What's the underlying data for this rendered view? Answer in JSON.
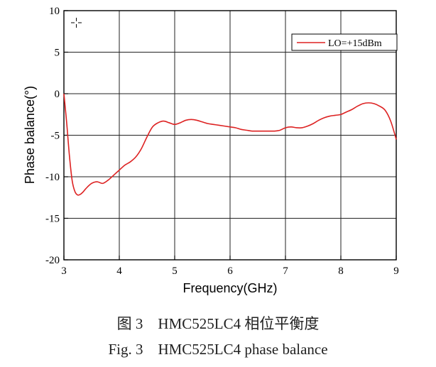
{
  "chart_data": {
    "type": "line",
    "title": "",
    "xlabel": "Frequency(GHz)",
    "ylabel": "Phase balance(°)",
    "xlim": [
      3,
      9
    ],
    "ylim": [
      -20,
      10
    ],
    "x_ticks": [
      3,
      4,
      5,
      6,
      7,
      8,
      9
    ],
    "y_ticks": [
      10,
      5,
      0,
      -5,
      -10,
      -15,
      -20
    ],
    "grid": true,
    "legend_position": "top-right",
    "series": [
      {
        "name": "LO=+15dBm",
        "color": "#dd2222",
        "x": [
          3.0,
          3.05,
          3.1,
          3.15,
          3.2,
          3.25,
          3.3,
          3.35,
          3.4,
          3.5,
          3.6,
          3.7,
          3.8,
          3.9,
          4.0,
          4.1,
          4.2,
          4.3,
          4.4,
          4.5,
          4.6,
          4.7,
          4.8,
          4.9,
          5.0,
          5.1,
          5.2,
          5.3,
          5.4,
          5.5,
          5.6,
          5.7,
          5.8,
          5.9,
          6.0,
          6.1,
          6.2,
          6.3,
          6.4,
          6.5,
          6.6,
          6.7,
          6.8,
          6.9,
          7.0,
          7.1,
          7.2,
          7.3,
          7.4,
          7.5,
          7.6,
          7.7,
          7.8,
          7.9,
          8.0,
          8.1,
          8.2,
          8.3,
          8.4,
          8.5,
          8.6,
          8.7,
          8.8,
          8.9,
          9.0
        ],
        "y": [
          0.0,
          -3.5,
          -7.5,
          -10.5,
          -11.8,
          -12.2,
          -12.1,
          -11.8,
          -11.4,
          -10.8,
          -10.6,
          -10.8,
          -10.4,
          -9.8,
          -9.2,
          -8.6,
          -8.2,
          -7.6,
          -6.6,
          -5.2,
          -4.0,
          -3.5,
          -3.3,
          -3.5,
          -3.7,
          -3.5,
          -3.2,
          -3.1,
          -3.2,
          -3.4,
          -3.6,
          -3.7,
          -3.8,
          -3.9,
          -4.0,
          -4.1,
          -4.3,
          -4.4,
          -4.5,
          -4.5,
          -4.5,
          -4.5,
          -4.5,
          -4.4,
          -4.1,
          -4.0,
          -4.1,
          -4.1,
          -3.9,
          -3.6,
          -3.2,
          -2.9,
          -2.7,
          -2.6,
          -2.5,
          -2.2,
          -1.9,
          -1.5,
          -1.2,
          -1.1,
          -1.2,
          -1.5,
          -2.0,
          -3.3,
          -5.5
        ]
      }
    ]
  },
  "caption": {
    "chinese": "图 3    HMC525LC4 相位平衡度",
    "english": "Fig. 3    HMC525LC4 phase balance"
  }
}
